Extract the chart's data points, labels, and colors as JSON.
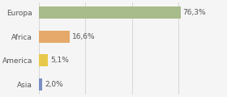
{
  "categories": [
    "Europa",
    "Africa",
    "America",
    "Asia"
  ],
  "values": [
    76.3,
    16.6,
    5.1,
    2.0
  ],
  "labels": [
    "76,3%",
    "16,6%",
    "5,1%",
    "2,0%"
  ],
  "bar_colors": [
    "#a8bb8a",
    "#e6a96a",
    "#e8c84a",
    "#7b8fc4"
  ],
  "background_color": "#f5f5f5",
  "xlim": [
    0,
    100
  ],
  "ylabel_fontsize": 6.5,
  "label_fontsize": 6.5,
  "bar_height": 0.5,
  "grid_color": "#cccccc",
  "text_color": "#555555"
}
